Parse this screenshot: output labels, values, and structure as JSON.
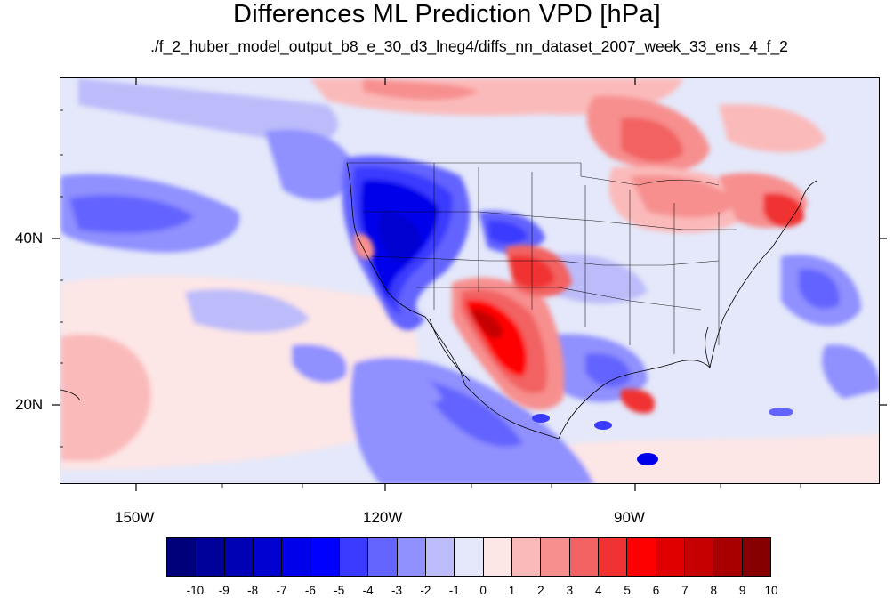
{
  "title": "Differences ML Prediction VPD [hPa]",
  "subtitle": "./f_2_huber_model_output_b8_e_30_d3_lneg4/diffs_nn_dataset_2007_week_33_ens_4_f_2",
  "axes": {
    "lon_labels": [
      "150W",
      "120W",
      "90W"
    ],
    "lat_labels": [
      "40N",
      "20N"
    ]
  },
  "colorbar": {
    "labels": [
      "-10",
      "-9",
      "-8",
      "-7",
      "-6",
      "-5",
      "-4",
      "-3",
      "-2",
      "-1",
      "0",
      "1",
      "2",
      "3",
      "4",
      "5",
      "6",
      "7",
      "8",
      "9",
      "10"
    ],
    "colors": [
      "#00007a",
      "#00009a",
      "#0000b4",
      "#0000cf",
      "#0000ea",
      "#0000ff",
      "#3b3bff",
      "#6464ff",
      "#9090ff",
      "#bcbcfa",
      "#e4e8fa",
      "#fde6e6",
      "#fbbaba",
      "#f78f8f",
      "#f26262",
      "#f03232",
      "#ff0000",
      "#e00000",
      "#c60000",
      "#a80000",
      "#860000"
    ]
  }
}
